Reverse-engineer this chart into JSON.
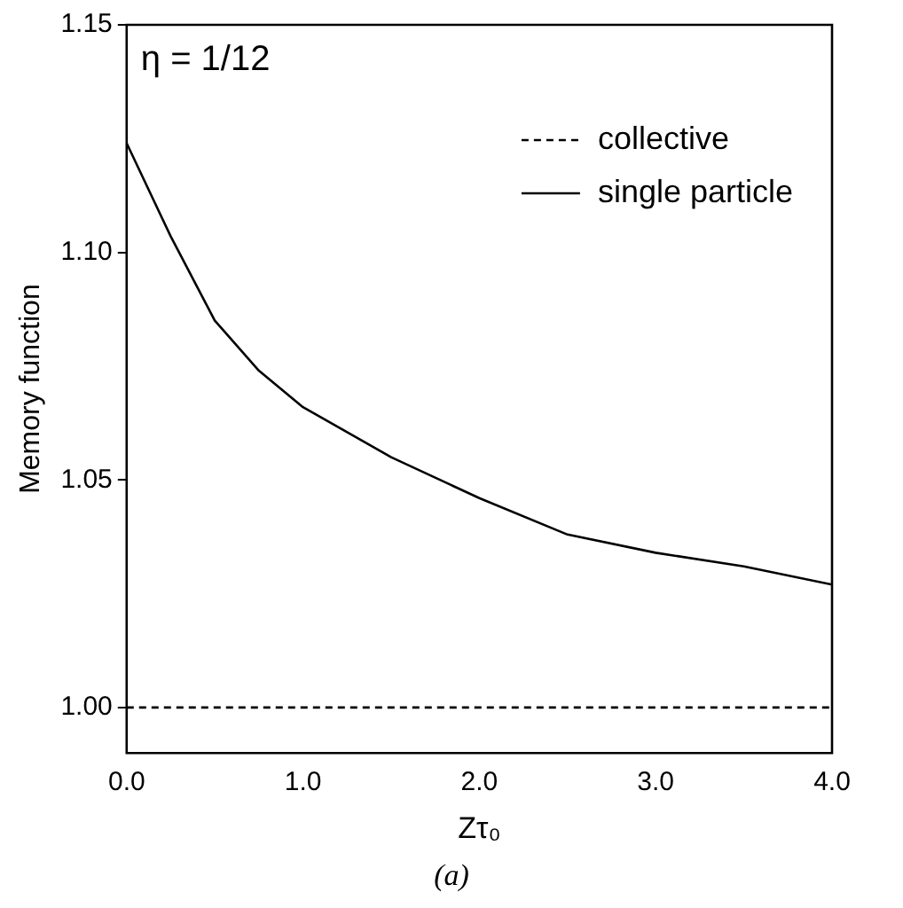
{
  "chart_data": {
    "type": "line",
    "xlabel": "Zτ₀",
    "ylabel": "Memory function",
    "annotations": [
      "η = 1/12",
      "(a)"
    ],
    "series": [
      {
        "name": "collective",
        "color": "#000000",
        "line_style": "dashed",
        "x": [
          0,
          4
        ],
        "values": [
          1.0,
          1.0
        ]
      },
      {
        "name": "single particle",
        "color": "#000000",
        "line_style": "solid",
        "x": [
          0,
          0.25,
          0.5,
          0.75,
          1,
          1.5,
          2,
          2.5,
          3,
          3.5,
          4
        ],
        "values": [
          1.124,
          1.1035,
          1.085,
          1.074,
          1.066,
          1.055,
          1.046,
          1.038,
          1.034,
          1.031,
          1.027
        ]
      }
    ],
    "xlim": [
      0,
      4
    ],
    "xticks": [
      {
        "value": 0,
        "label": "0.0"
      },
      {
        "value": 1,
        "label": "1.0"
      },
      {
        "value": 2,
        "label": "2.0"
      },
      {
        "value": 3,
        "label": "3.0"
      },
      {
        "value": 4,
        "label": "4.0"
      }
    ],
    "ylim": [
      0.99,
      1.15
    ],
    "yticks": [
      {
        "value": 1,
        "label": "1.00"
      },
      {
        "value": 1.05,
        "label": "1.05"
      },
      {
        "value": 1.1,
        "label": "1.10"
      },
      {
        "value": 1.15,
        "label": "1.15"
      }
    ],
    "grid": false,
    "legend": "top right",
    "marker": "none"
  }
}
